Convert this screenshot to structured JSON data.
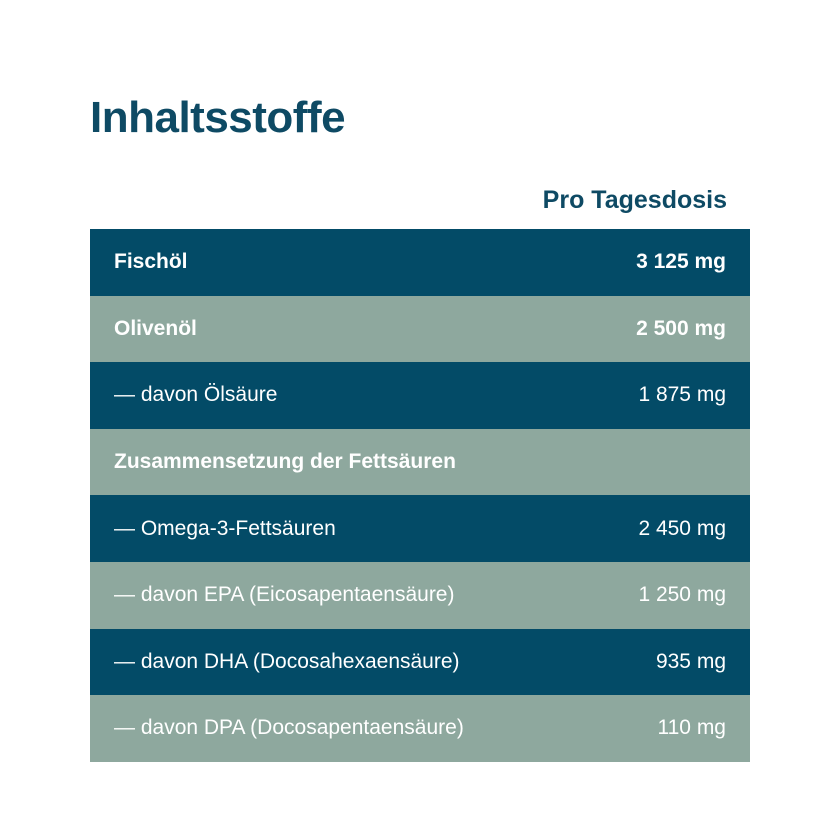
{
  "title": "Inhaltsstoffe",
  "column_header": "Pro Tagesdosis",
  "colors": {
    "heading": "#0e4a64",
    "row_dark": "#034b67",
    "row_light": "#8ea89e",
    "row_text": "#ffffff"
  },
  "rows": [
    {
      "label": "Fischöl",
      "value": "3 125 mg",
      "bold": true,
      "shade": "dark"
    },
    {
      "label": "Olivenöl",
      "value": "2 500 mg",
      "bold": true,
      "shade": "light"
    },
    {
      "label": "— davon Ölsäure",
      "value": "1 875 mg",
      "bold": false,
      "shade": "dark"
    },
    {
      "label": "Zusammensetzung der Fettsäuren",
      "value": "",
      "bold": true,
      "shade": "light"
    },
    {
      "label": "— Omega-3-Fettsäuren",
      "value": "2 450 mg",
      "bold": false,
      "shade": "dark"
    },
    {
      "label": "— davon EPA (Eicosapentaensäure)",
      "value": "1 250 mg",
      "bold": false,
      "shade": "light"
    },
    {
      "label": "— davon DHA (Docosahexaensäure)",
      "value": "935 mg",
      "bold": false,
      "shade": "dark"
    },
    {
      "label": "— davon DPA (Docosapentaensäure)",
      "value": "110 mg",
      "bold": false,
      "shade": "light"
    }
  ]
}
